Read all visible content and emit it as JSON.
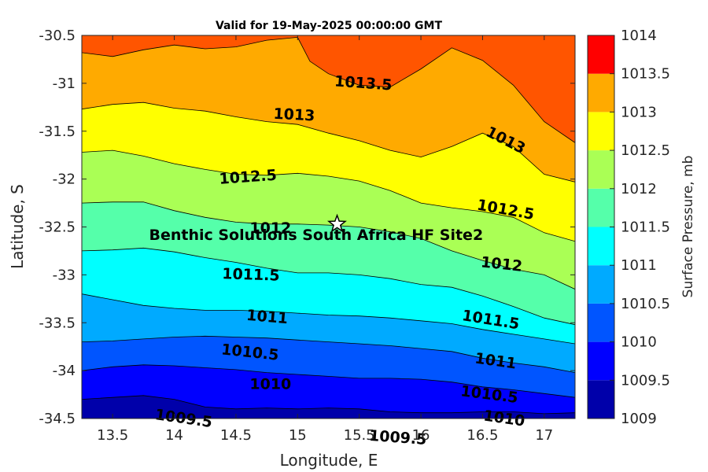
{
  "chart_data": {
    "type": "contour",
    "title": "Valid for 19-May-2025 00:00:00 GMT",
    "xlabel": "Longitude, E",
    "ylabel": "Latitude, S",
    "colorbar_label": "Surface Pressure, mb",
    "xlim": [
      13.25,
      17.25
    ],
    "ylim": [
      -34.5,
      -30.5
    ],
    "x_ticks": [
      "13.5",
      "14",
      "14.5",
      "15",
      "15.5",
      "16",
      "16.5",
      "17"
    ],
    "y_ticks": [
      "-30.5",
      "-31",
      "-31.5",
      "-32",
      "-32.5",
      "-33",
      "-33.5",
      "-34",
      "-34.5"
    ],
    "levels": [
      1009,
      1009.5,
      1010,
      1010.5,
      1011,
      1011.5,
      1012,
      1012.5,
      1013,
      1013.5,
      1014
    ],
    "colorbar_ticks": [
      "1009",
      "1009.5",
      "1010",
      "1010.5",
      "1011",
      "1011.5",
      "1012",
      "1012.5",
      "1013",
      "1013.5",
      "1014"
    ],
    "band_colors": [
      "#0000aa",
      "#0000ff",
      "#0055ff",
      "#00aaff",
      "#00ffff",
      "#55ffaa",
      "#aaff55",
      "#ffff00",
      "#ffaa00",
      "#ff5500"
    ],
    "isobars": [
      {
        "level": 1013.5,
        "label": "1013.5",
        "points": [
          [
            13.25,
            -30.5
          ],
          [
            13.25,
            -30.5
          ]
        ]
      },
      {
        "level": 1009.5,
        "label": "1009.5",
        "points": [
          [
            13.25,
            -34.3
          ],
          [
            13.5,
            -34.28
          ],
          [
            13.75,
            -34.26
          ],
          [
            14,
            -34.3
          ],
          [
            14.25,
            -34.38
          ],
          [
            14.5,
            -34.4
          ],
          [
            14.75,
            -34.39
          ],
          [
            15,
            -34.4
          ],
          [
            15.25,
            -34.39
          ],
          [
            15.5,
            -34.4
          ],
          [
            15.75,
            -34.43
          ],
          [
            16,
            -34.44
          ],
          [
            16.25,
            -34.44
          ],
          [
            16.5,
            -34.43
          ],
          [
            16.75,
            -34.43
          ],
          [
            17,
            -34.45
          ],
          [
            17.25,
            -34.44
          ]
        ]
      },
      {
        "level": 1010,
        "label": "1010",
        "points": [
          [
            13.25,
            -34
          ],
          [
            13.5,
            -33.96
          ],
          [
            13.75,
            -33.94
          ],
          [
            14,
            -33.95
          ],
          [
            14.25,
            -33.97
          ],
          [
            14.5,
            -33.99
          ],
          [
            14.75,
            -34.02
          ],
          [
            15,
            -34.04
          ],
          [
            15.25,
            -34.06
          ],
          [
            15.5,
            -34.08
          ],
          [
            15.75,
            -34.08
          ],
          [
            16,
            -34.09
          ],
          [
            16.25,
            -34.12
          ],
          [
            16.5,
            -34.17
          ],
          [
            16.75,
            -34.2
          ],
          [
            17,
            -34.24
          ],
          [
            17.25,
            -34.28
          ]
        ]
      },
      {
        "level": 1010.5,
        "label": "1010.5",
        "points": [
          [
            13.25,
            -33.7
          ],
          [
            13.5,
            -33.69
          ],
          [
            13.75,
            -33.67
          ],
          [
            14,
            -33.65
          ],
          [
            14.25,
            -33.64
          ],
          [
            14.5,
            -33.65
          ],
          [
            14.75,
            -33.66
          ],
          [
            15,
            -33.68
          ],
          [
            15.25,
            -33.7
          ],
          [
            15.5,
            -33.72
          ],
          [
            15.75,
            -33.74
          ],
          [
            16,
            -33.77
          ],
          [
            16.25,
            -33.8
          ],
          [
            16.5,
            -33.87
          ],
          [
            16.75,
            -33.92
          ],
          [
            17,
            -33.96
          ],
          [
            17.25,
            -34.02
          ]
        ]
      },
      {
        "level": 1011,
        "label": "1011",
        "points": [
          [
            13.25,
            -33.2
          ],
          [
            13.5,
            -33.26
          ],
          [
            13.75,
            -33.32
          ],
          [
            14,
            -33.35
          ],
          [
            14.25,
            -33.37
          ],
          [
            14.5,
            -33.37
          ],
          [
            14.75,
            -33.38
          ],
          [
            15,
            -33.4
          ],
          [
            15.25,
            -33.42
          ],
          [
            15.5,
            -33.43
          ],
          [
            15.75,
            -33.45
          ],
          [
            16,
            -33.48
          ],
          [
            16.25,
            -33.51
          ],
          [
            16.5,
            -33.57
          ],
          [
            16.75,
            -33.62
          ],
          [
            17,
            -33.67
          ],
          [
            17.25,
            -33.72
          ]
        ]
      },
      {
        "level": 1011.5,
        "label": "1011.5",
        "points": [
          [
            13.25,
            -32.75
          ],
          [
            13.5,
            -32.74
          ],
          [
            13.75,
            -32.72
          ],
          [
            14,
            -32.76
          ],
          [
            14.25,
            -32.82
          ],
          [
            14.5,
            -32.87
          ],
          [
            14.75,
            -32.93
          ],
          [
            15,
            -32.98
          ],
          [
            15.25,
            -32.98
          ],
          [
            15.5,
            -33
          ],
          [
            15.75,
            -33.04
          ],
          [
            16,
            -33.1
          ],
          [
            16.25,
            -33.13
          ],
          [
            16.5,
            -33.22
          ],
          [
            16.75,
            -33.33
          ],
          [
            17,
            -33.45
          ],
          [
            17.25,
            -33.52
          ]
        ]
      },
      {
        "level": 1012,
        "label": "1012",
        "points": [
          [
            13.25,
            -32.25
          ],
          [
            13.5,
            -32.24
          ],
          [
            13.75,
            -32.24
          ],
          [
            14,
            -32.33
          ],
          [
            14.25,
            -32.4
          ],
          [
            14.5,
            -32.45
          ],
          [
            14.75,
            -32.47
          ],
          [
            15,
            -32.47
          ],
          [
            15.25,
            -32.48
          ],
          [
            15.5,
            -32.5
          ],
          [
            15.75,
            -32.55
          ],
          [
            16,
            -32.62
          ],
          [
            16.25,
            -32.75
          ],
          [
            16.5,
            -32.85
          ],
          [
            16.75,
            -32.94
          ],
          [
            17,
            -33
          ],
          [
            17.25,
            -33.15
          ]
        ]
      },
      {
        "level": 1012.5,
        "label": "1012.5",
        "points": [
          [
            13.25,
            -31.72
          ],
          [
            13.5,
            -31.7
          ],
          [
            13.75,
            -31.76
          ],
          [
            14,
            -31.84
          ],
          [
            14.25,
            -31.9
          ],
          [
            14.5,
            -31.95
          ],
          [
            14.75,
            -31.96
          ],
          [
            15,
            -31.94
          ],
          [
            15.25,
            -31.97
          ],
          [
            15.5,
            -32.02
          ],
          [
            15.75,
            -32.12
          ],
          [
            16,
            -32.25
          ],
          [
            16.25,
            -32.3
          ],
          [
            16.5,
            -32.34
          ],
          [
            16.75,
            -32.4
          ],
          [
            17,
            -32.56
          ],
          [
            17.25,
            -32.65
          ]
        ]
      },
      {
        "level": 1013,
        "label": "1013",
        "points": [
          [
            13.25,
            -31.27
          ],
          [
            13.5,
            -31.22
          ],
          [
            13.75,
            -31.2
          ],
          [
            14,
            -31.26
          ],
          [
            14.25,
            -31.29
          ],
          [
            14.5,
            -31.35
          ],
          [
            14.75,
            -31.4
          ],
          [
            15,
            -31.43
          ],
          [
            15.25,
            -31.52
          ],
          [
            15.5,
            -31.6
          ],
          [
            15.75,
            -31.7
          ],
          [
            16,
            -31.77
          ],
          [
            16.25,
            -31.66
          ],
          [
            16.5,
            -31.52
          ],
          [
            16.75,
            -31.66
          ],
          [
            17,
            -31.95
          ],
          [
            17.25,
            -32.03
          ]
        ]
      },
      {
        "level": 1013.5,
        "label": "1013.5",
        "points": [
          [
            13.25,
            -30.68
          ],
          [
            13.5,
            -30.72
          ],
          [
            13.75,
            -30.65
          ],
          [
            14,
            -30.6
          ],
          [
            14.25,
            -30.64
          ],
          [
            14.5,
            -30.62
          ],
          [
            14.75,
            -30.55
          ],
          [
            15,
            -30.52
          ],
          [
            15.1,
            -30.77
          ],
          [
            15.25,
            -30.9
          ],
          [
            15.5,
            -31.02
          ],
          [
            15.75,
            -31.04
          ],
          [
            16,
            -30.85
          ],
          [
            16.25,
            -30.63
          ],
          [
            16.5,
            -30.76
          ],
          [
            16.75,
            -31.02
          ],
          [
            17,
            -31.4
          ],
          [
            17.25,
            -31.62
          ]
        ]
      }
    ],
    "contour_labels": [
      {
        "text": "1013.5",
        "x": 15.53,
        "y": -31.05,
        "angle": 4
      },
      {
        "text": "1013",
        "x": 14.97,
        "y": -31.38,
        "angle": 3
      },
      {
        "text": "1013",
        "x": 16.67,
        "y": -31.64,
        "angle": 27
      },
      {
        "text": "1012.5",
        "x": 14.6,
        "y": -32.03,
        "angle": -4
      },
      {
        "text": "1012.5",
        "x": 16.68,
        "y": -32.37,
        "angle": 10
      },
      {
        "text": "1012",
        "x": 14.78,
        "y": -32.56,
        "angle": 0
      },
      {
        "text": "1012",
        "x": 16.65,
        "y": -32.94,
        "angle": 6
      },
      {
        "text": "1011.5",
        "x": 14.62,
        "y": -33.05,
        "angle": 2
      },
      {
        "text": "1011.5",
        "x": 16.56,
        "y": -33.52,
        "angle": 9
      },
      {
        "text": "1011",
        "x": 14.75,
        "y": -33.49,
        "angle": 5
      },
      {
        "text": "1011",
        "x": 16.6,
        "y": -33.95,
        "angle": 8
      },
      {
        "text": "1010.5",
        "x": 14.61,
        "y": -33.86,
        "angle": 6
      },
      {
        "text": "1010.5",
        "x": 16.55,
        "y": -34.3,
        "angle": 7
      },
      {
        "text": "1010",
        "x": 14.78,
        "y": -34.19,
        "angle": 0
      },
      {
        "text": "1010",
        "x": 16.67,
        "y": -34.55,
        "angle": 8
      },
      {
        "text": "1009.5",
        "x": 14.07,
        "y": -34.55,
        "angle": 8
      },
      {
        "text": "1009.5",
        "x": 15.81,
        "y": -34.75,
        "angle": 4
      }
    ],
    "site": {
      "name": "Benthic Solutions South Africa HF Site2",
      "x": 15.32,
      "y": -32.47,
      "marker": "star"
    },
    "grid": false,
    "colorbar": "right"
  }
}
